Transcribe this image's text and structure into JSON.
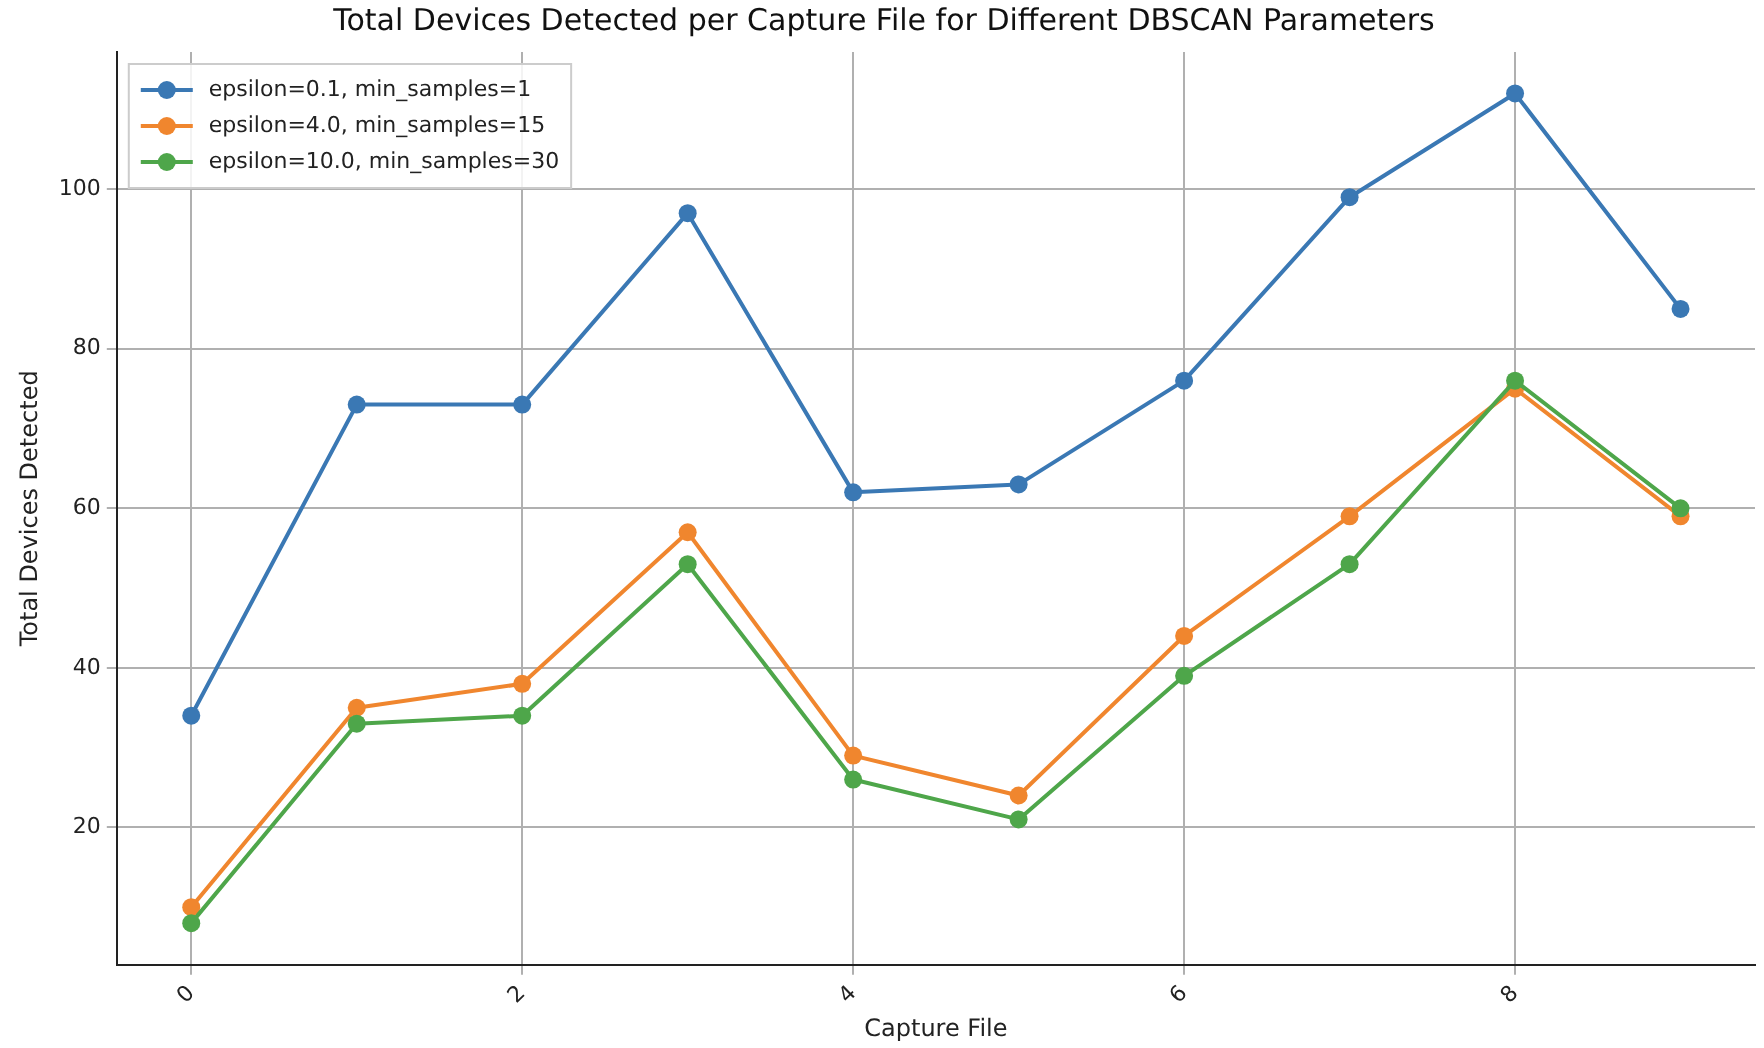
{
  "chart_data": {
    "type": "line",
    "title": "Total Devices Detected per Capture File for Different DBSCAN Parameters",
    "xlabel": "Capture File",
    "ylabel": "Total Devices Detected",
    "x": [
      0,
      1,
      2,
      3,
      4,
      5,
      6,
      7,
      8,
      9
    ],
    "series": [
      {
        "name": "epsilon=0.1, min_samples=1",
        "color": "#3a78b4",
        "values": [
          34,
          73,
          73,
          97,
          62,
          63,
          76,
          99,
          112,
          85
        ]
      },
      {
        "name": "epsilon=4.0, min_samples=15",
        "color": "#f0862e",
        "values": [
          10,
          35,
          38,
          57,
          29,
          24,
          44,
          59,
          75,
          59
        ]
      },
      {
        "name": "epsilon=10.0, min_samples=30",
        "color": "#4ea64a",
        "values": [
          8,
          33,
          34,
          53,
          26,
          21,
          39,
          53,
          76,
          60
        ]
      }
    ],
    "xlim": [
      -0.45,
      9.45
    ],
    "xticks": [
      0,
      2,
      4,
      6,
      8
    ],
    "ylim": [
      2.8,
      117.2
    ],
    "yticks": [
      20,
      40,
      60,
      80,
      100
    ],
    "grid": true,
    "legend": "top left",
    "marker": "circle",
    "line_style": "solid"
  }
}
